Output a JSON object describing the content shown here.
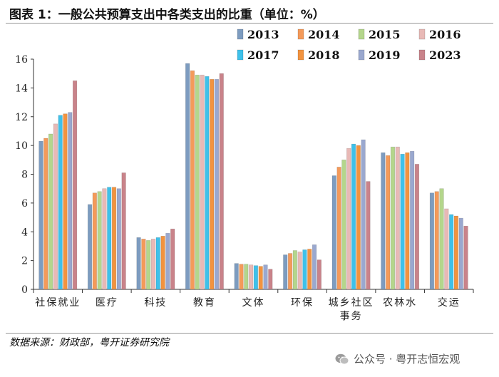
{
  "title": "图表 1：一般公共预算支出中各类支出的比重（单位：%）",
  "source": "数据来源：财政部，粤开证券研究院",
  "watermark": "公众号 · 粤开志恒宏观",
  "colors": {
    "2013": "#7d9cc0",
    "2014": "#f49a5a",
    "2015": "#b4d68c",
    "2016": "#e8b9b6",
    "2017": "#3ec1ea",
    "2018": "#f2933f",
    "2019": "#9aa8cf",
    "2023": "#c9838a"
  },
  "chart_data": {
    "type": "bar",
    "categories": [
      "社保就业",
      "医疗",
      "科技",
      "教育",
      "文体",
      "环保",
      "城乡社区\n事务",
      "农林水",
      "交运"
    ],
    "ylim": [
      0,
      16
    ],
    "yticks": [
      "0",
      "2",
      "4",
      "6",
      "8",
      "10",
      "12",
      "14",
      "16"
    ],
    "grid": false,
    "legend_position": "top-right",
    "series": [
      {
        "name": "2013",
        "values": [
          10.3,
          5.9,
          3.6,
          15.7,
          1.8,
          2.4,
          7.9,
          9.5,
          6.7
        ]
      },
      {
        "name": "2014",
        "values": [
          10.5,
          6.7,
          3.5,
          15.2,
          1.75,
          2.5,
          8.5,
          9.3,
          6.8
        ]
      },
      {
        "name": "2015",
        "values": [
          10.8,
          6.8,
          3.4,
          14.9,
          1.75,
          2.7,
          9.0,
          9.9,
          7.0
        ]
      },
      {
        "name": "2016",
        "values": [
          11.5,
          7.0,
          3.5,
          14.9,
          1.7,
          2.6,
          9.8,
          9.9,
          5.6
        ]
      },
      {
        "name": "2017",
        "values": [
          12.1,
          7.1,
          3.6,
          14.8,
          1.65,
          2.75,
          10.1,
          9.4,
          5.2
        ]
      },
      {
        "name": "2018",
        "values": [
          12.2,
          7.1,
          3.7,
          14.6,
          1.6,
          2.8,
          10.0,
          9.5,
          5.1
        ]
      },
      {
        "name": "2019",
        "values": [
          12.3,
          7.0,
          3.9,
          14.6,
          1.7,
          3.1,
          10.4,
          9.6,
          4.95
        ]
      },
      {
        "name": "2023",
        "values": [
          14.5,
          8.1,
          4.2,
          15.0,
          1.4,
          2.05,
          7.5,
          8.7,
          4.4
        ]
      }
    ]
  }
}
